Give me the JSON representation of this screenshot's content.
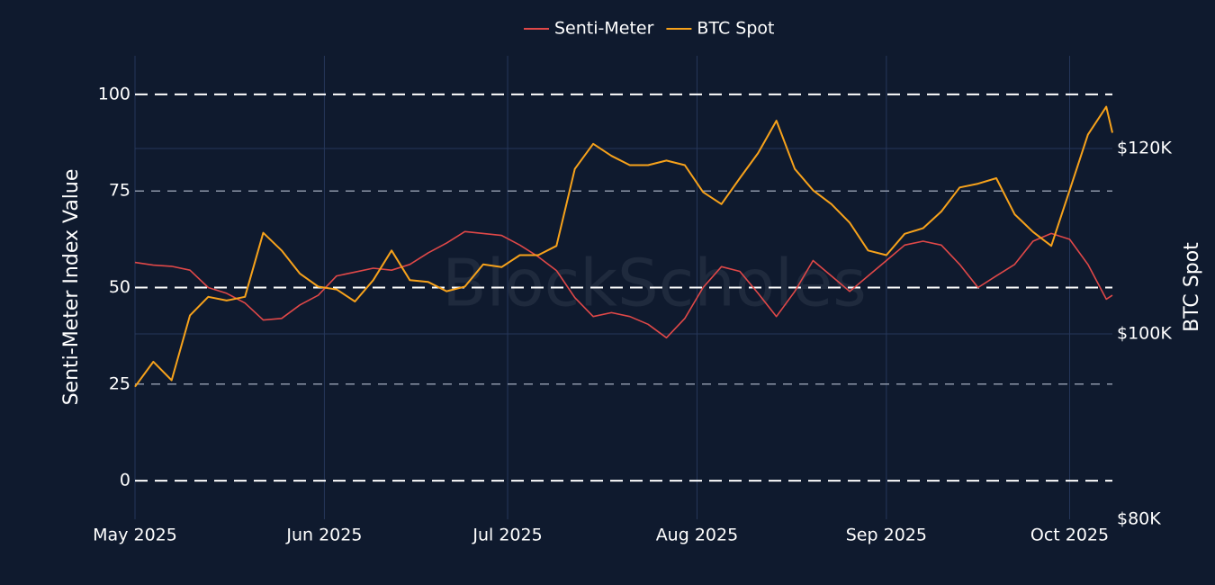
{
  "chart_data": {
    "type": "line",
    "watermark": "BlockScholes",
    "y_label": "Senti-Meter Index Value",
    "y2_label": "BTC Spot",
    "x": [
      "2025-05-01",
      "2025-05-04",
      "2025-05-07",
      "2025-05-10",
      "2025-05-13",
      "2025-05-16",
      "2025-05-19",
      "2025-05-22",
      "2025-05-25",
      "2025-05-28",
      "2025-05-31",
      "2025-06-03",
      "2025-06-06",
      "2025-06-09",
      "2025-06-12",
      "2025-06-15",
      "2025-06-18",
      "2025-06-21",
      "2025-06-24",
      "2025-06-27",
      "2025-06-30",
      "2025-07-03",
      "2025-07-06",
      "2025-07-09",
      "2025-07-12",
      "2025-07-15",
      "2025-07-18",
      "2025-07-21",
      "2025-07-24",
      "2025-07-27",
      "2025-07-30",
      "2025-08-02",
      "2025-08-05",
      "2025-08-08",
      "2025-08-11",
      "2025-08-14",
      "2025-08-17",
      "2025-08-20",
      "2025-08-23",
      "2025-08-26",
      "2025-08-29",
      "2025-09-01",
      "2025-09-04",
      "2025-09-07",
      "2025-09-10",
      "2025-09-13",
      "2025-09-16",
      "2025-09-19",
      "2025-09-22",
      "2025-09-25",
      "2025-09-28",
      "2025-10-01",
      "2025-10-04",
      "2025-10-07",
      "2025-10-08"
    ],
    "series": [
      {
        "name": "Senti-Meter",
        "color": "#e04848",
        "axis": "y",
        "values": [
          56.5,
          55.8,
          55.5,
          54.5,
          50,
          48.5,
          46,
          41.6,
          42,
          45.5,
          48,
          53,
          54,
          55,
          54.5,
          56,
          59,
          61.5,
          64.5,
          64,
          63.5,
          61,
          58,
          54.4,
          47.4,
          42.5,
          43.5,
          42.5,
          40.5,
          37,
          42,
          50,
          55.4,
          54.2,
          48.5,
          42.5,
          49,
          57,
          53,
          49,
          53,
          57,
          61,
          62,
          61,
          56,
          50,
          53,
          56,
          62,
          64,
          62.5,
          56,
          47,
          48
        ]
      },
      {
        "name": "BTC Spot",
        "color": "#f7a21b",
        "axis": "y2",
        "values": [
          94300,
          97000,
          95000,
          102000,
          104000,
          103600,
          104000,
          110900,
          109000,
          106500,
          105100,
          104800,
          103500,
          105800,
          109000,
          105800,
          105600,
          104600,
          105100,
          107500,
          107200,
          108500,
          108500,
          109500,
          117800,
          120500,
          119200,
          118200,
          118200,
          118700,
          118200,
          115300,
          114000,
          116800,
          119500,
          123000,
          117800,
          115500,
          114000,
          112000,
          109000,
          108500,
          110800,
          111400,
          113200,
          115800,
          116200,
          116800,
          112900,
          111000,
          109500,
          115500,
          121500,
          124500,
          121700
        ]
      }
    ],
    "xlim": [
      "2025-05-01",
      "2025-10-08"
    ],
    "xticks": [
      {
        "value": "2025-05-01",
        "label": "May 2025"
      },
      {
        "value": "2025-06-01",
        "label": "Jun 2025"
      },
      {
        "value": "2025-07-01",
        "label": "Jul 2025"
      },
      {
        "value": "2025-08-01",
        "label": "Aug 2025"
      },
      {
        "value": "2025-09-01",
        "label": "Sep 2025"
      },
      {
        "value": "2025-10-01",
        "label": "Oct 2025"
      }
    ],
    "ylim": [
      -10,
      110
    ],
    "yticks": [
      0,
      25,
      50,
      75,
      100
    ],
    "y2lim": [
      80000,
      130000
    ],
    "y2ticks": [
      {
        "value": 80000,
        "label": "$80K"
      },
      {
        "value": 100000,
        "label": "$100K"
      },
      {
        "value": 120000,
        "label": "$120K"
      }
    ],
    "grid": true,
    "legend": "top"
  }
}
